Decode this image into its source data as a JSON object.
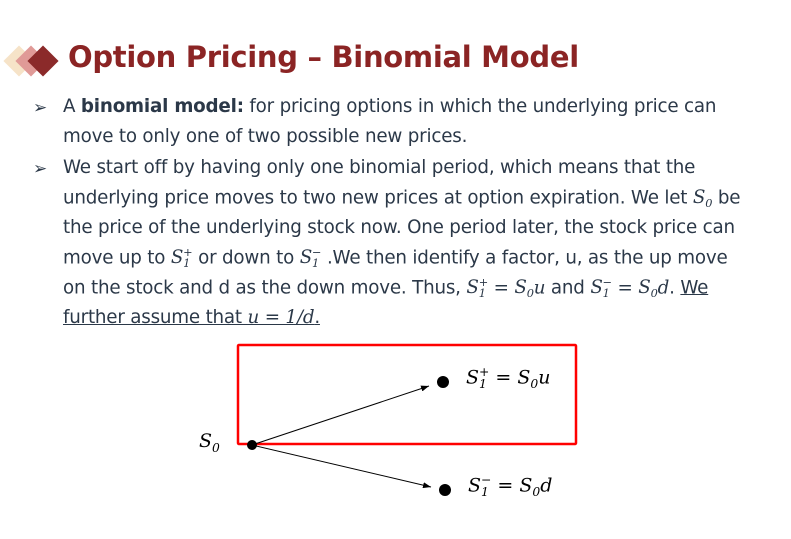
{
  "slide": {
    "title": "Option Pricing – Binomial Model",
    "accent_color": "#8b2424",
    "diamond_colors": [
      "#f6e3c8",
      "#e09a97",
      "#8b2a2a"
    ],
    "bullet_icon": "arrowhead-bullet",
    "bullets": [
      {
        "lines": [
          [
            {
              "t": "A "
            },
            {
              "b": "binomial model:"
            },
            {
              "t": " for pricing options in which the underlying price can"
            }
          ],
          [
            {
              "t": "move to only one of two possible new prices."
            }
          ]
        ]
      },
      {
        "lines": [
          [
            {
              "t": "We start off by having only one binomial period, which means that the"
            }
          ],
          [
            {
              "t": "underlying price moves to two new prices at option expiration. We let "
            },
            {
              "m": "S",
              "sub": "0"
            },
            {
              "t": " be"
            }
          ],
          [
            {
              "t": "the price of the underlying stock now. One period later, the stock price can"
            }
          ],
          [
            {
              "t": "move up to "
            },
            {
              "m": "S",
              "sub": "1",
              "sup": "+"
            },
            {
              "t": " or down to "
            },
            {
              "m": "S",
              "sub": "1",
              "sup": "−"
            },
            {
              "t": " .We then identify a factor, u, as the up move"
            }
          ],
          [
            {
              "t": "on the stock and d as the down move. Thus, "
            },
            {
              "m": "S",
              "sub": "1",
              "sup": "+"
            },
            {
              "t": " = "
            },
            {
              "m": "S",
              "sub": "0"
            },
            {
              "m": "u"
            },
            {
              "t": " and "
            },
            {
              "m": "S",
              "sub": "1",
              "sup": "−"
            },
            {
              "t": " = "
            },
            {
              "m": "S",
              "sub": "0"
            },
            {
              "m": "d"
            },
            {
              "t": ". "
            },
            {
              "u": "We"
            }
          ],
          [
            {
              "u": "further assume that "
            },
            {
              "m": "u = 1/d",
              "u": true
            },
            {
              "u": "."
            }
          ]
        ]
      }
    ]
  },
  "diagram": {
    "start_label": {
      "base": "S",
      "sub": "0"
    },
    "up_label": {
      "base": "S",
      "sub": "1",
      "sup": "+",
      "rhs": " = S",
      "rhs_sub": "0",
      "rhs_tail": "u"
    },
    "down_label": {
      "base": "S",
      "sub": "1",
      "sup": "−",
      "rhs": " = S",
      "rhs_sub": "0",
      "rhs_tail": "d"
    },
    "highlight_color": "#ff0000"
  }
}
